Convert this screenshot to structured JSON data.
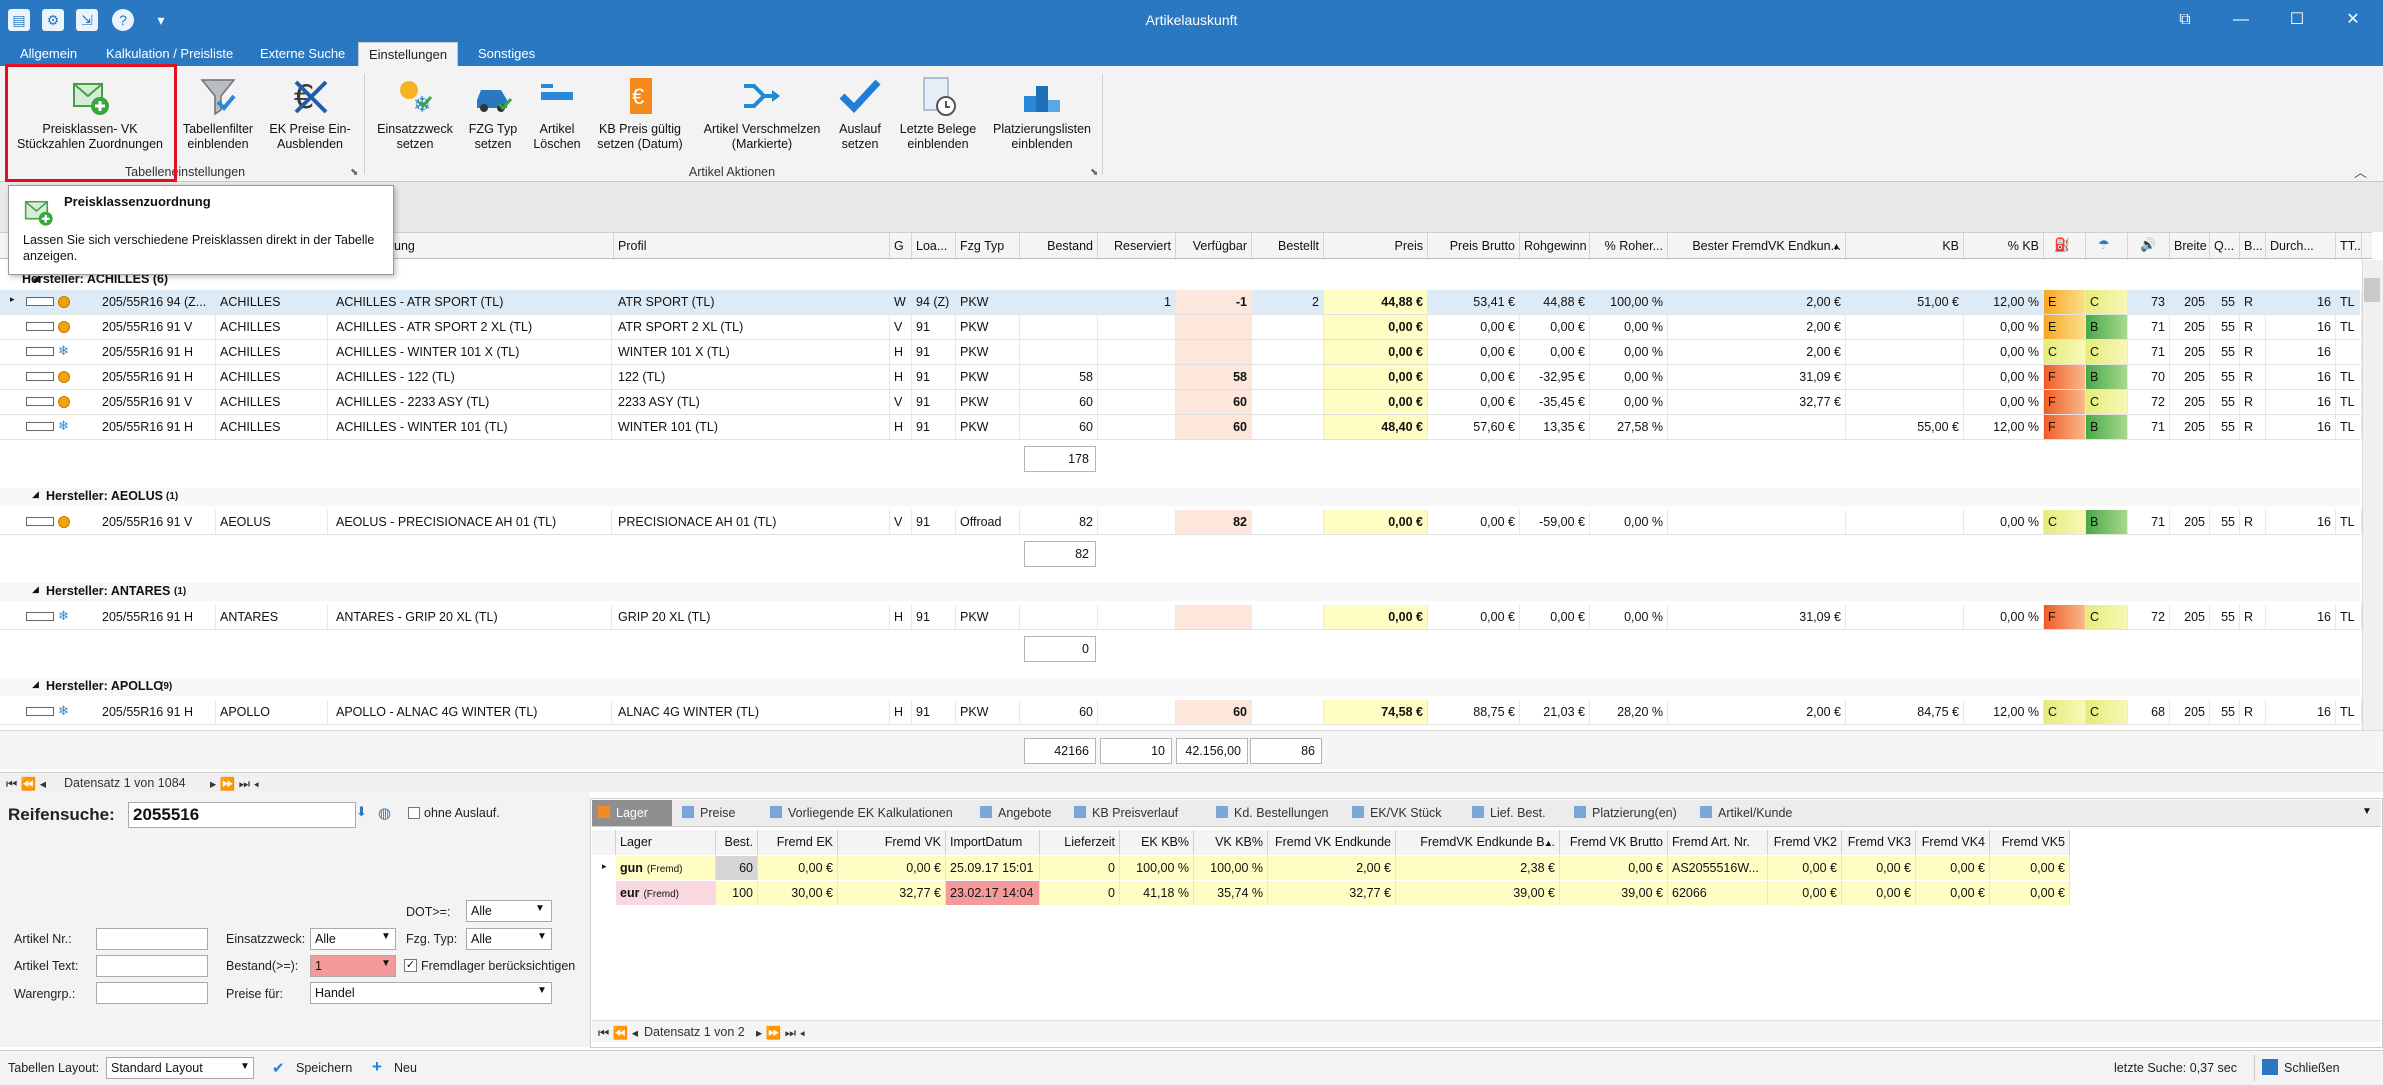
{
  "window": {
    "title": "Artikelauskunft",
    "min": "—",
    "max": "☐",
    "close": "✕",
    "restore": "⧉"
  },
  "tabs": [
    "Allgemein",
    "Kalkulation / Preisliste",
    "Externe Suche",
    "Einstellungen",
    "Sonstiges"
  ],
  "ribbon": {
    "buttons": [
      "Preisklassen- VK\nStückzahlen Zuordnungen",
      "Tabellenfilter\neinblenden",
      "EK Preise Ein-\nAusblenden",
      "Einsatzzweck\nsetzen",
      "FZG Typ\nsetzen",
      "Artikel\nLöschen",
      "KB Preis gültig\nsetzen (Datum)",
      "Artikel Verschmelzen\n(Markierte)",
      "Auslauf\nsetzen",
      "Letzte Belege\neinblenden",
      "Platzierungslisten\neinblenden"
    ],
    "group1": "Tabelleneinstellungen",
    "group2": "Artikel Aktionen"
  },
  "tooltip": {
    "title": "Preisklassenzuordnung",
    "text": "Lassen Sie sich verschiedene Preisklassen direkt in der Tabelle anzeigen."
  },
  "grid": {
    "headers": [
      "ung",
      "Profil",
      "G",
      "Loa...",
      "Fzg Typ",
      "Bestand",
      "Reserviert",
      "Verfügbar",
      "Bestellt",
      "Preis",
      "Preis Brutto",
      "Rohgewinn",
      "% Roher...",
      "Bester FremdVK Endkun...",
      "KB",
      "% KB",
      "",
      "",
      "",
      "Breite",
      "Q...",
      "B...",
      "Durch...",
      "TT..."
    ],
    "group_partial": "Hersteller: ACHILLES (6)",
    "groups": [
      {
        "label": "Hersteller: AEOLUS",
        "count": "(1)"
      },
      {
        "label": "Hersteller: ANTARES",
        "count": "(1)"
      },
      {
        "label": "Hersteller: APOLLO",
        "count": "(9)"
      }
    ],
    "rows": [
      [
        "205/55R16 94 (Z...",
        "ACHILLES",
        "ACHILLES - ATR SPORT (TL)",
        "ATR SPORT (TL)",
        "W",
        "94 (Z)",
        "PKW",
        "",
        "1",
        "-1",
        "2",
        "44,88 €",
        "53,41 €",
        "44,88 €",
        "100,00 %",
        "2,00 €",
        "51,00 €",
        "12,00 %",
        "E",
        "C",
        "73",
        "205",
        "55",
        "R",
        "16",
        "TL"
      ],
      [
        "205/55R16 91 V",
        "ACHILLES",
        "ACHILLES - ATR SPORT 2 XL (TL)",
        "ATR SPORT 2 XL (TL)",
        "V",
        "91",
        "PKW",
        "",
        "",
        "",
        "",
        "0,00 €",
        "0,00 €",
        "0,00 €",
        "0,00 %",
        "2,00 €",
        "",
        "0,00 %",
        "E",
        "B",
        "71",
        "205",
        "55",
        "R",
        "16",
        "TL"
      ],
      [
        "205/55R16 91 H",
        "ACHILLES",
        "ACHILLES - WINTER 101 X (TL)",
        "WINTER 101 X (TL)",
        "H",
        "91",
        "PKW",
        "",
        "",
        "",
        "",
        "0,00 €",
        "0,00 €",
        "0,00 €",
        "0,00 %",
        "2,00 €",
        "",
        "0,00 %",
        "C",
        "C",
        "71",
        "205",
        "55",
        "R",
        "16",
        ""
      ],
      [
        "205/55R16 91 H",
        "ACHILLES",
        "ACHILLES - 122 (TL)",
        "122 (TL)",
        "H",
        "91",
        "PKW",
        "58",
        "",
        "58",
        "",
        "0,00 €",
        "0,00 €",
        "-32,95 €",
        "0,00 %",
        "31,09 €",
        "",
        "0,00 %",
        "F",
        "B",
        "70",
        "205",
        "55",
        "R",
        "16",
        "TL"
      ],
      [
        "205/55R16 91 V",
        "ACHILLES",
        "ACHILLES - 2233 ASY (TL)",
        "2233 ASY (TL)",
        "V",
        "91",
        "PKW",
        "60",
        "",
        "60",
        "",
        "0,00 €",
        "0,00 €",
        "-35,45 €",
        "0,00 %",
        "32,77 €",
        "",
        "0,00 %",
        "F",
        "C",
        "72",
        "205",
        "55",
        "R",
        "16",
        "TL"
      ],
      [
        "205/55R16 91 H",
        "ACHILLES",
        "ACHILLES - WINTER 101 (TL)",
        "WINTER 101 (TL)",
        "H",
        "91",
        "PKW",
        "60",
        "",
        "60",
        "",
        "48,40 €",
        "57,60 €",
        "13,35 €",
        "27,58 %",
        "",
        "55,00 €",
        "12,00 %",
        "F",
        "B",
        "71",
        "205",
        "55",
        "R",
        "16",
        "TL"
      ],
      [
        "205/55R16 91 V",
        "AEOLUS",
        "AEOLUS - PRECISIONACE AH 01 (TL)",
        "PRECISIONACE AH 01 (TL)",
        "V",
        "91",
        "Offroad",
        "82",
        "",
        "82",
        "",
        "0,00 €",
        "0,00 €",
        "-59,00 €",
        "0,00 %",
        "",
        "",
        "0,00 %",
        "C",
        "B",
        "71",
        "205",
        "55",
        "R",
        "16",
        "TL"
      ],
      [
        "205/55R16 91 H",
        "ANTARES",
        "ANTARES - GRIP 20 XL (TL)",
        "GRIP 20 XL (TL)",
        "H",
        "91",
        "PKW",
        "",
        "",
        "",
        "",
        "0,00 €",
        "0,00 €",
        "0,00 €",
        "0,00 %",
        "31,09 €",
        "",
        "0,00 %",
        "F",
        "C",
        "72",
        "205",
        "55",
        "R",
        "16",
        "TL"
      ],
      [
        "205/55R16 91 H",
        "APOLLO",
        "APOLLO - ALNAC 4G WINTER (TL)",
        "ALNAC 4G WINTER (TL)",
        "H",
        "91",
        "PKW",
        "60",
        "",
        "60",
        "",
        "74,58 €",
        "88,75 €",
        "21,03 €",
        "28,20 %",
        "2,00 €",
        "84,75 €",
        "12,00 %",
        "C",
        "C",
        "68",
        "205",
        "55",
        "R",
        "16",
        "TL"
      ]
    ],
    "subtotals": [
      "178",
      "82",
      "0"
    ],
    "totals": [
      "42166",
      "10",
      "42.156,00",
      "86"
    ],
    "nav": "Datensatz 1 von 1084"
  },
  "search": {
    "label": "Reifensuche:",
    "value": "2055516",
    "ohne_auslauf": "ohne Auslauf.",
    "dot_label": "DOT>=:",
    "dot_value": "Alle",
    "artnr": "Artikel Nr.:",
    "arttext": "Artikel Text:",
    "warengrp": "Warengrp.:",
    "einsatz": "Einsatzzweck:",
    "einsatz_v": "Alle",
    "fzg": "Fzg. Typ:",
    "fzg_v": "Alle",
    "bestand": "Bestand(>=):",
    "bestand_v": "1",
    "fremdlager": "Fremdlager berücksichtigen",
    "preise": "Preise für:",
    "preise_v": "Handel"
  },
  "bottom_tabs": [
    "Lager",
    "Preise",
    "Vorliegende EK Kalkulationen",
    "Angebote",
    "KB Preisverlauf",
    "Kd. Bestellungen",
    "EK/VK Stück",
    "Lief. Best.",
    "Platzierung(en)",
    "Artikel/Kunde"
  ],
  "lager": {
    "headers": [
      "Lager",
      "Best.",
      "Fremd EK",
      "Fremd VK",
      "ImportDatum",
      "Lieferzeit",
      "EK KB%",
      "VK KB%",
      "Fremd VK Endkunde",
      "FremdVK Endkunde B...",
      "Fremd VK Brutto",
      "Fremd Art. Nr.",
      "Fremd VK2",
      "Fremd VK3",
      "Fremd VK4",
      "Fremd VK5"
    ],
    "rows": [
      [
        "gun",
        "(Fremd)",
        "60",
        "0,00 €",
        "0,00 €",
        "25.09.17 15:01",
        "0",
        "100,00 %",
        "100,00 %",
        "2,00 €",
        "2,38 €",
        "0,00 €",
        "AS2055516W...",
        "0,00 €",
        "0,00 €",
        "0,00 €",
        "0,00 €"
      ],
      [
        "eur",
        "(Fremd)",
        "100",
        "30,00 €",
        "32,77 €",
        "23.02.17 14:04",
        "0",
        "41,18 %",
        "35,74 %",
        "32,77 €",
        "39,00 €",
        "39,00 €",
        "62066",
        "0,00 €",
        "0,00 €",
        "0,00 €",
        "0,00 €"
      ]
    ],
    "nav": "Datensatz 1 von 2"
  },
  "status": {
    "layout_label": "Tabellen Layout:",
    "layout_value": "Standard Layout",
    "save": "Speichern",
    "new": "Neu",
    "last_search": "letzte Suche: 0,37 sec",
    "close": "Schließen"
  },
  "colors": {
    "accent": "#2b78c2",
    "price_yellow": "#fdfdc4",
    "avail_peach": "#fde6dc",
    "highlight": "#e3101f"
  }
}
